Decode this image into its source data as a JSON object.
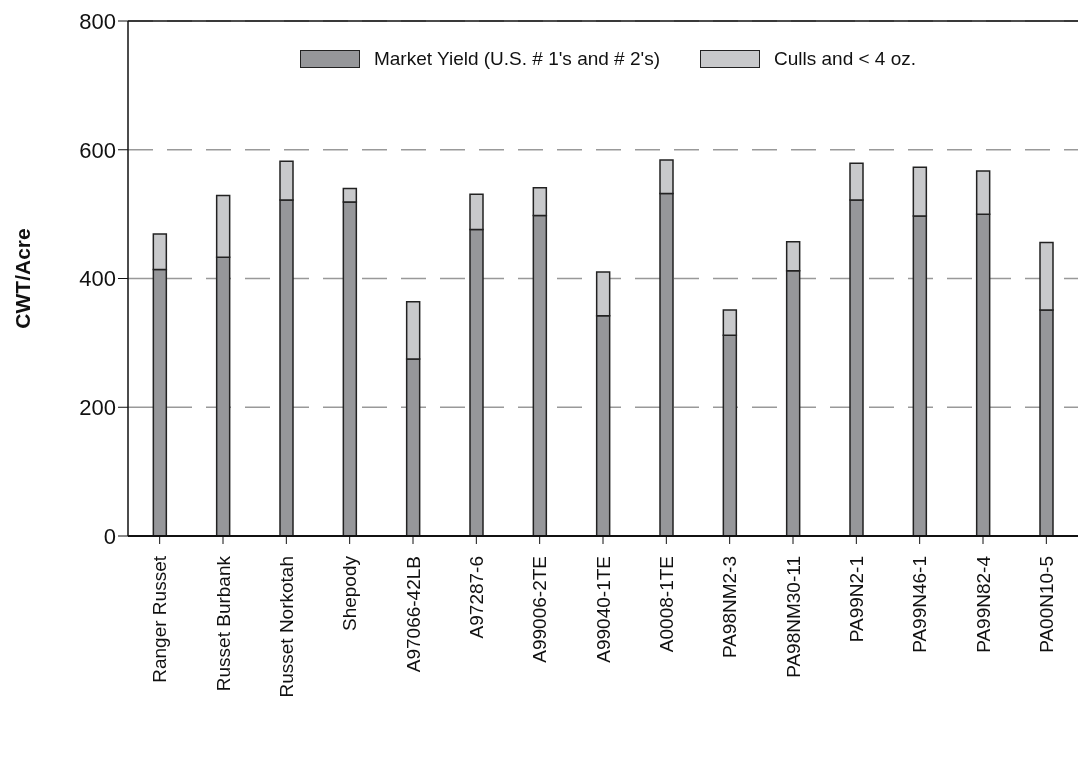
{
  "chart_data": {
    "type": "bar",
    "stacked": true,
    "ylabel": "CWT/Acre",
    "categories": [
      "Ranger Russet",
      "Russet Burbank",
      "Russet Norkotah",
      "Shepody",
      "A97066-42LB",
      "A97287-6",
      "A99006-2TE",
      "A99040-1TE",
      "A0008-1TE",
      "PA98NM2-3",
      "PA98NM30-11",
      "PA99N2-1",
      "PA99N46-1",
      "PA99N82-4",
      "PA00N10-5"
    ],
    "series": [
      {
        "name": "Market Yield (U.S. # 1's and # 2's)",
        "color": "#96979a",
        "values": [
          414,
          433,
          522,
          519,
          275,
          476,
          498,
          342,
          532,
          312,
          412,
          522,
          497,
          500,
          351
        ]
      },
      {
        "name": "Culls and < 4 oz.",
        "color": "#c8c9cb",
        "values": [
          55,
          96,
          60,
          21,
          89,
          55,
          43,
          68,
          52,
          39,
          45,
          57,
          76,
          67,
          105
        ]
      }
    ],
    "ylim": [
      0,
      800
    ],
    "yticks": [
      0,
      200,
      400,
      600,
      800
    ],
    "grid": "y",
    "legend": "top"
  }
}
